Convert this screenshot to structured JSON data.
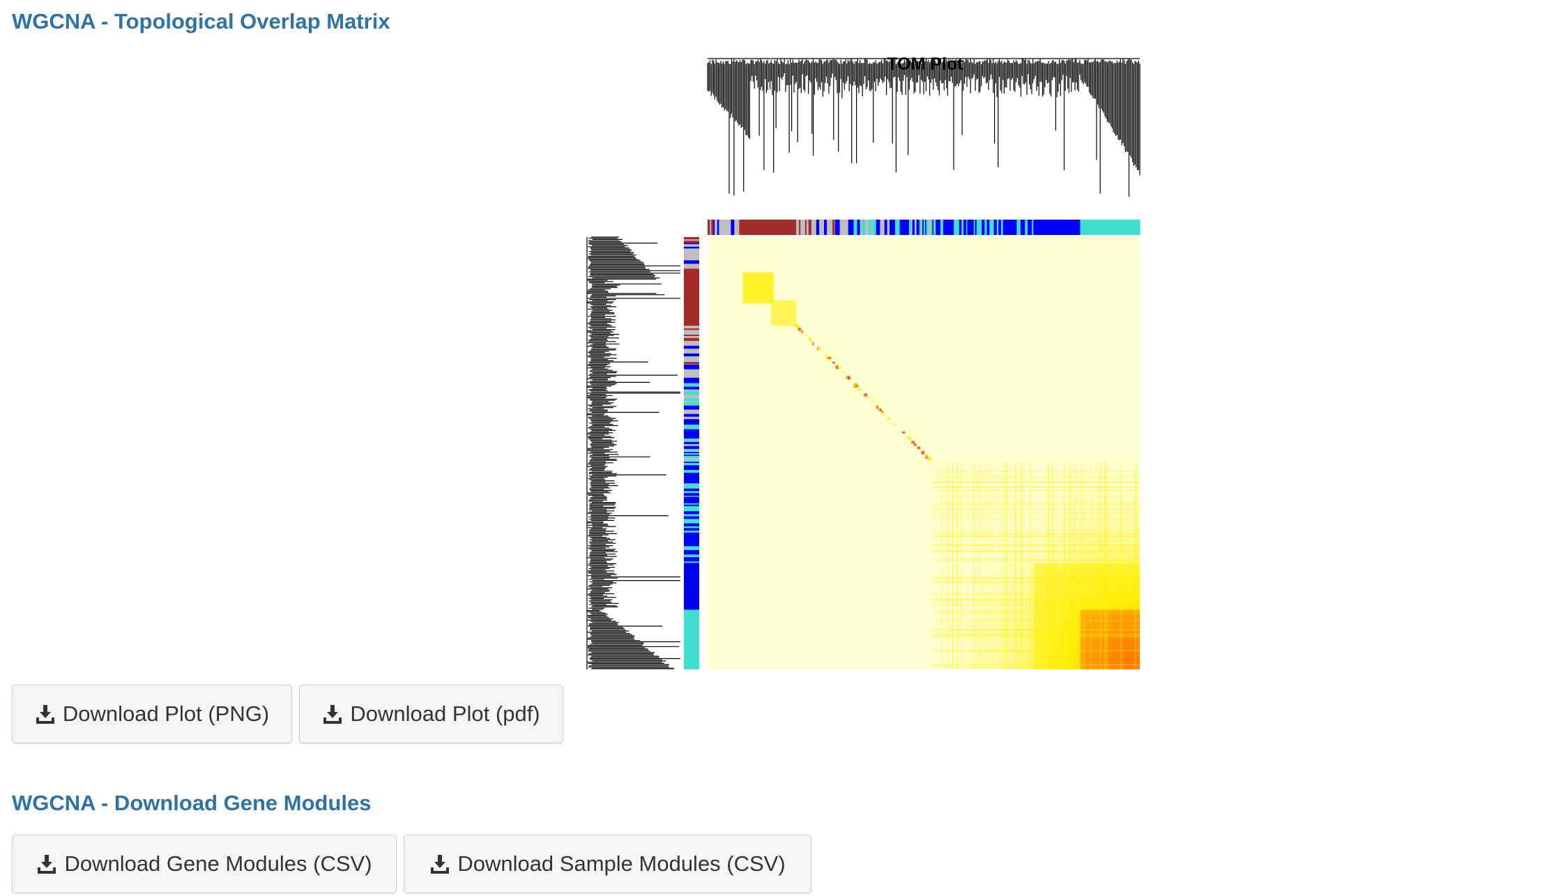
{
  "sections": {
    "tom": {
      "title": "WGCNA - Topological Overlap Matrix"
    },
    "modules": {
      "title": "WGCNA - Download Gene Modules"
    }
  },
  "plot": {
    "title": "TOM Plot",
    "module_colors": {
      "grey": "#bebebe",
      "brown": "#a52a2a",
      "blue": "#0000ff",
      "turquoise": "#40e0d0"
    },
    "heatmap_colors": {
      "low": "#ffffd2",
      "mid": "#ffee00",
      "high": "#ff2200"
    }
  },
  "buttons": {
    "download_plot_png": "Download Plot (PNG)",
    "download_plot_pdf": "Download Plot (pdf)",
    "download_gene_modules": "Download Gene Modules (CSV)",
    "download_sample_modules": "Download Sample Modules (CSV)"
  },
  "icons": {
    "download": "download-icon"
  }
}
